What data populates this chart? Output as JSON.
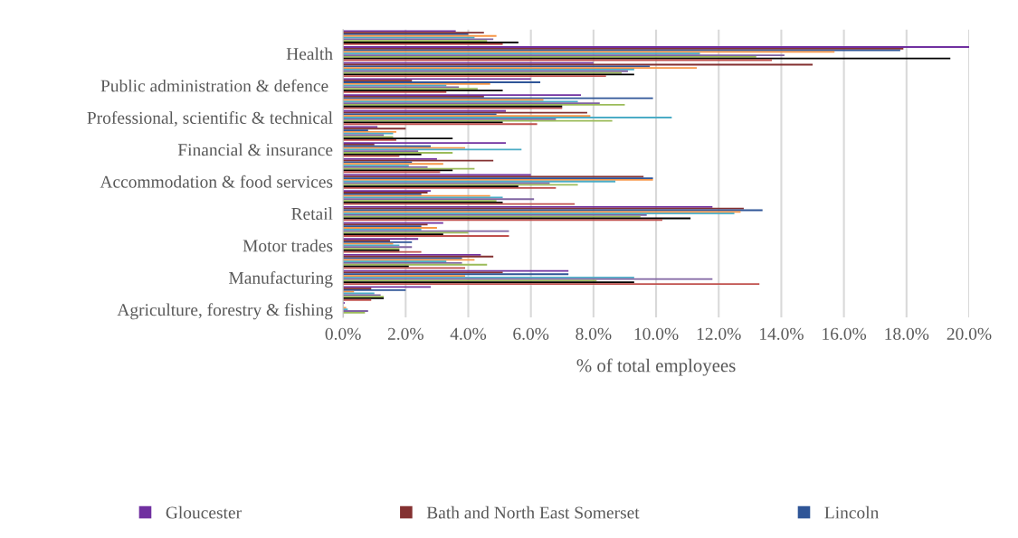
{
  "chart_data": {
    "type": "bar",
    "orientation": "horizontal",
    "xlabel": "% of total employees",
    "categories": [
      null,
      "Health",
      null,
      "Public administration & defence ",
      null,
      "Professional, scientific & technical",
      null,
      "Financial & insurance",
      null,
      "Accommodation & food services",
      null,
      "Retail",
      null,
      "Motor trades",
      null,
      "Manufacturing",
      null,
      "Agriculture, forestry & fishing"
    ],
    "series": [
      {
        "name": "Gloucester",
        "color": "#7030a0",
        "values": [
          3.6,
          20.0,
          8.0,
          6.0,
          7.6,
          5.2,
          1.1,
          5.2,
          3.0,
          6.0,
          2.8,
          11.8,
          3.2,
          2.4,
          4.4,
          7.2,
          2.8,
          0.05
        ]
      },
      {
        "name": "Bath and North East Somerset",
        "color": "#843131",
        "values": [
          4.5,
          17.9,
          15.0,
          2.2,
          4.5,
          7.8,
          2.0,
          1.0,
          4.8,
          9.6,
          2.7,
          12.8,
          2.7,
          1.5,
          4.8,
          5.1,
          0.9,
          null
        ]
      },
      {
        "name": "Lincoln",
        "color": "#2f5597",
        "values": [
          4.0,
          17.8,
          9.8,
          6.3,
          9.9,
          4.9,
          0.8,
          2.8,
          2.2,
          9.9,
          2.5,
          13.4,
          2.5,
          2.2,
          3.8,
          7.2,
          2.0,
          null
        ]
      },
      {
        "color": "#f79646",
        "values": [
          4.9,
          15.7,
          11.3,
          4.7,
          6.4,
          7.9,
          1.7,
          3.9,
          3.2,
          9.9,
          4.7,
          12.7,
          3.0,
          1.6,
          4.2,
          3.9,
          0.35,
          0.1
        ]
      },
      {
        "color": "#4bacc6",
        "values": [
          4.2,
          11.4,
          9.3,
          3.3,
          7.5,
          10.5,
          1.6,
          5.7,
          2.1,
          8.7,
          5.1,
          12.5,
          2.5,
          1.8,
          3.3,
          9.3,
          1.0,
          0.15
        ]
      },
      {
        "color": "#8064a2",
        "values": [
          4.8,
          14.1,
          9.1,
          3.7,
          8.2,
          6.8,
          1.3,
          2.4,
          2.7,
          6.6,
          6.1,
          9.7,
          5.3,
          2.2,
          3.8,
          11.8,
          1.2,
          0.8
        ]
      },
      {
        "color": "#9bbb59",
        "values": [
          4.6,
          13.2,
          8.9,
          4.3,
          9.0,
          8.6,
          1.6,
          3.5,
          4.2,
          7.5,
          4.9,
          9.5,
          4.0,
          1.8,
          4.6,
          8.1,
          1.3,
          0.7
        ]
      },
      {
        "color": "#000000",
        "values": [
          5.6,
          19.4,
          9.3,
          5.1,
          7.0,
          5.1,
          3.5,
          2.5,
          3.5,
          5.6,
          5.1,
          11.1,
          3.2,
          1.8,
          2.1,
          9.3,
          1.3,
          null
        ]
      },
      {
        "color": "#c0504d",
        "values": [
          5.1,
          13.7,
          8.4,
          3.3,
          7.0,
          6.2,
          1.7,
          1.8,
          3.1,
          6.8,
          7.4,
          10.2,
          5.3,
          2.5,
          3.9,
          13.3,
          0.9,
          null
        ]
      }
    ],
    "xlim": [
      0,
      20
    ],
    "xticks": [
      {
        "value": 0,
        "label": "0.0%"
      },
      {
        "value": 2,
        "label": "2.0%"
      },
      {
        "value": 4,
        "label": "4.0%"
      },
      {
        "value": 6,
        "label": "6.0%"
      },
      {
        "value": 8,
        "label": "8.0%"
      },
      {
        "value": 10,
        "label": "10.0%"
      },
      {
        "value": 12,
        "label": "12.0%"
      },
      {
        "value": 14,
        "label": "14.0%"
      },
      {
        "value": 16,
        "label": "16.0%"
      },
      {
        "value": 18,
        "label": "18.0%"
      },
      {
        "value": 20,
        "label": "20.0%"
      }
    ],
    "grid": "x",
    "legend": "bottom"
  }
}
